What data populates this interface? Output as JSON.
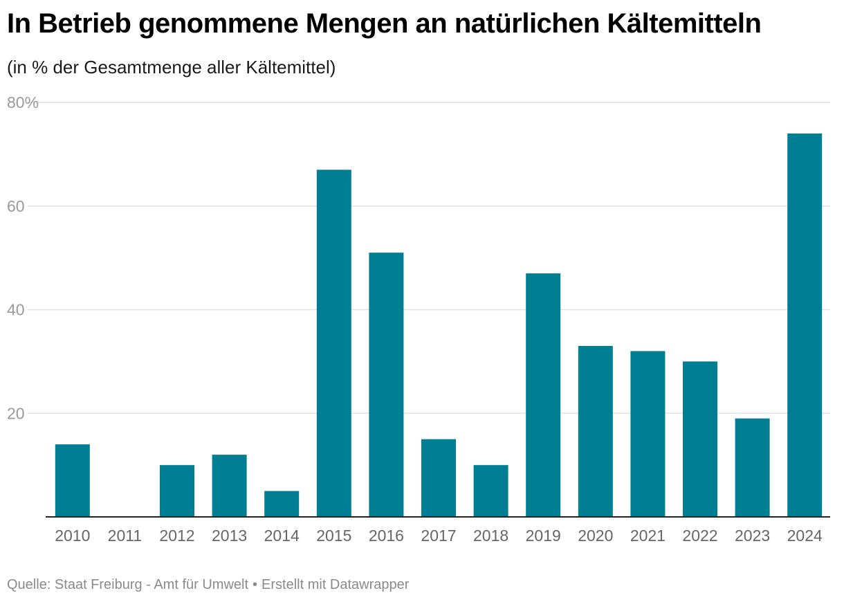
{
  "colors": {
    "bar": "#007f94",
    "grid": "#e2e2e2",
    "axis": "#222222"
  },
  "chart_data": {
    "type": "bar",
    "title": "In Betrieb genommene Mengen an natürlichen Kältemitteln",
    "subtitle": "(in % der Gesamtmenge aller Kältemittel)",
    "xlabel": "",
    "ylabel": "",
    "ylim": [
      0,
      80
    ],
    "yticks": [
      20,
      40,
      60,
      80
    ],
    "ytick_labels": [
      "20",
      "40",
      "60",
      "80%"
    ],
    "grid": true,
    "categories": [
      "2010",
      "2011",
      "2012",
      "2013",
      "2014",
      "2015",
      "2016",
      "2017",
      "2018",
      "2019",
      "2020",
      "2021",
      "2022",
      "2023",
      "2024"
    ],
    "values": [
      14,
      0,
      10,
      12,
      5,
      67,
      51,
      15,
      10,
      47,
      33,
      32,
      30,
      19,
      74
    ]
  },
  "footer": {
    "source": "Quelle: Staat Freiburg - Amt für Umwelt",
    "separator": "•",
    "credit": "Erstellt mit Datawrapper"
  }
}
